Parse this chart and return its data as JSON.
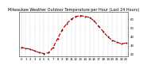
{
  "title": "Milwaukee Weather Outdoor Temperature per Hour (Last 24 Hours)",
  "hours": [
    0,
    1,
    2,
    3,
    4,
    5,
    6,
    7,
    8,
    9,
    10,
    11,
    12,
    13,
    14,
    15,
    16,
    17,
    18,
    19,
    20,
    21,
    22,
    23
  ],
  "temps": [
    28,
    27,
    26,
    24,
    22,
    21,
    22,
    28,
    38,
    48,
    55,
    60,
    63,
    64,
    63,
    62,
    58,
    52,
    46,
    40,
    36,
    34,
    32,
    33
  ],
  "line_color": "#dd0000",
  "dot_color": "#222222",
  "bg_color": "#ffffff",
  "grid_color": "#999999",
  "ylim_min": 18,
  "ylim_max": 68,
  "ytick_values": [
    20,
    30,
    40,
    50,
    60
  ],
  "title_fontsize": 3.5,
  "tick_fontsize": 2.8,
  "linewidth": 0.9,
  "markersize": 1.0
}
